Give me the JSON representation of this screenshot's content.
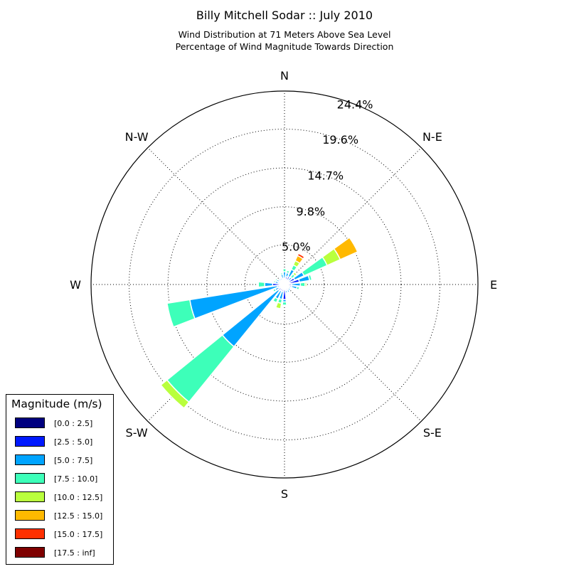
{
  "title": "Billy Mitchell Sodar :: July 2010",
  "subtitle_lines": [
    "Wind Distribution at 71 Meters Above Sea Level",
    "Percentage of Wind Magnitude Towards Direction"
  ],
  "chart_data": {
    "type": "windrose",
    "directions": [
      {
        "name": "N",
        "angle": 0
      },
      {
        "name": "N-E",
        "angle": 45
      },
      {
        "name": "E",
        "angle": 90
      },
      {
        "name": "S-E",
        "angle": 135
      },
      {
        "name": "S",
        "angle": 180
      },
      {
        "name": "S-W",
        "angle": 225
      },
      {
        "name": "W",
        "angle": 270
      },
      {
        "name": "N-W",
        "angle": 315
      }
    ],
    "radial_ticks": [
      5.0,
      9.8,
      14.7,
      19.6,
      24.4
    ],
    "radial_tick_labels": [
      "5.0%",
      "9.8%",
      "14.7%",
      "19.6%",
      "24.4%"
    ],
    "rmax": 24.4,
    "legend_title": "Magnitude (m/s)",
    "bins": [
      {
        "label": "[0.0 : 2.5]",
        "color": "#00007f"
      },
      {
        "label": "[2.5 : 5.0]",
        "color": "#0019ff"
      },
      {
        "label": "[5.0 : 7.5]",
        "color": "#00a4ff"
      },
      {
        "label": "[7.5 : 10.0]",
        "color": "#3dffb9"
      },
      {
        "label": "[10.0 : 12.5]",
        "color": "#b9ff3d"
      },
      {
        "label": "[12.5 : 15.0]",
        "color": "#ffb900"
      },
      {
        "label": "[15.0 : 17.5]",
        "color": "#ff3000"
      },
      {
        "label": "[17.5 : inf]",
        "color": "#7f0000"
      }
    ],
    "sector_width_deg": 15,
    "series": [
      {
        "direction_deg": 0,
        "values": [
          0.3,
          0.5,
          0.8,
          0.4,
          0,
          0,
          0,
          0
        ]
      },
      {
        "direction_deg": 15,
        "values": [
          0.3,
          0.7,
          0.5,
          0.3,
          0.1,
          0,
          0,
          0
        ]
      },
      {
        "direction_deg": 30,
        "values": [
          0.3,
          0.8,
          1.0,
          0.6,
          0.6,
          0.7,
          0.3,
          0.1
        ]
      },
      {
        "direction_deg": 45,
        "values": [
          0.3,
          0.4,
          0.5,
          0.5,
          0.3,
          0,
          0,
          0
        ]
      },
      {
        "direction_deg": 60,
        "values": [
          0.4,
          1.0,
          1.3,
          3.2,
          1.8,
          2.4,
          0,
          0
        ]
      },
      {
        "direction_deg": 75,
        "values": [
          0.4,
          1.5,
          1.3,
          0.3,
          0,
          0,
          0,
          0
        ]
      },
      {
        "direction_deg": 90,
        "values": [
          0.3,
          0.6,
          1.1,
          0.6,
          0.2,
          0,
          0,
          0
        ]
      },
      {
        "direction_deg": 105,
        "values": [
          0.3,
          0.6,
          0.7,
          0.3,
          0,
          0,
          0,
          0
        ]
      },
      {
        "direction_deg": 120,
        "values": [
          0.3,
          0.4,
          0.2,
          0.1,
          0,
          0,
          0,
          0
        ]
      },
      {
        "direction_deg": 135,
        "values": [
          0.3,
          0.4,
          0.3,
          0,
          0,
          0,
          0,
          0
        ]
      },
      {
        "direction_deg": 150,
        "values": [
          0.3,
          0.5,
          0.3,
          0,
          0,
          0,
          0,
          0
        ]
      },
      {
        "direction_deg": 165,
        "values": [
          0.3,
          0.5,
          0.3,
          0,
          0,
          0,
          0,
          0
        ]
      },
      {
        "direction_deg": 180,
        "values": [
          0.3,
          1.6,
          0.3,
          0.4,
          0,
          0,
          0,
          0
        ]
      },
      {
        "direction_deg": 195,
        "values": [
          0.3,
          0.6,
          1.0,
          0.5,
          0.7,
          0,
          0,
          0
        ]
      },
      {
        "direction_deg": 210,
        "values": [
          0.3,
          0.6,
          1.1,
          0.5,
          0,
          0,
          0,
          0
        ]
      },
      {
        "direction_deg": 225,
        "values": [
          0.4,
          0.6,
          9.1,
          9.0,
          1.0,
          0,
          0,
          0
        ]
      },
      {
        "direction_deg": 240,
        "values": [
          0.3,
          0.5,
          0.5,
          0.3,
          0,
          0,
          0,
          0
        ]
      },
      {
        "direction_deg": 255,
        "values": [
          0.3,
          0.6,
          11.2,
          2.9,
          0,
          0,
          0,
          0
        ]
      },
      {
        "direction_deg": 270,
        "values": [
          0.3,
          1.2,
          1.0,
          0.8,
          0,
          0,
          0,
          0
        ]
      },
      {
        "direction_deg": 285,
        "values": [
          0.3,
          0.5,
          0.4,
          0.2,
          0,
          0,
          0,
          0
        ]
      },
      {
        "direction_deg": 300,
        "values": [
          0.3,
          0.5,
          0.3,
          0.2,
          0,
          0,
          0,
          0
        ]
      },
      {
        "direction_deg": 315,
        "values": [
          0.3,
          0.4,
          0.2,
          0,
          0,
          0,
          0,
          0
        ]
      },
      {
        "direction_deg": 330,
        "values": [
          0.3,
          0.4,
          0.2,
          0,
          0,
          0,
          0,
          0
        ]
      },
      {
        "direction_deg": 345,
        "values": [
          0.3,
          0.5,
          0.5,
          0.2,
          0,
          0,
          0,
          0
        ]
      }
    ],
    "grid": true,
    "legend_position": "lower-left"
  }
}
